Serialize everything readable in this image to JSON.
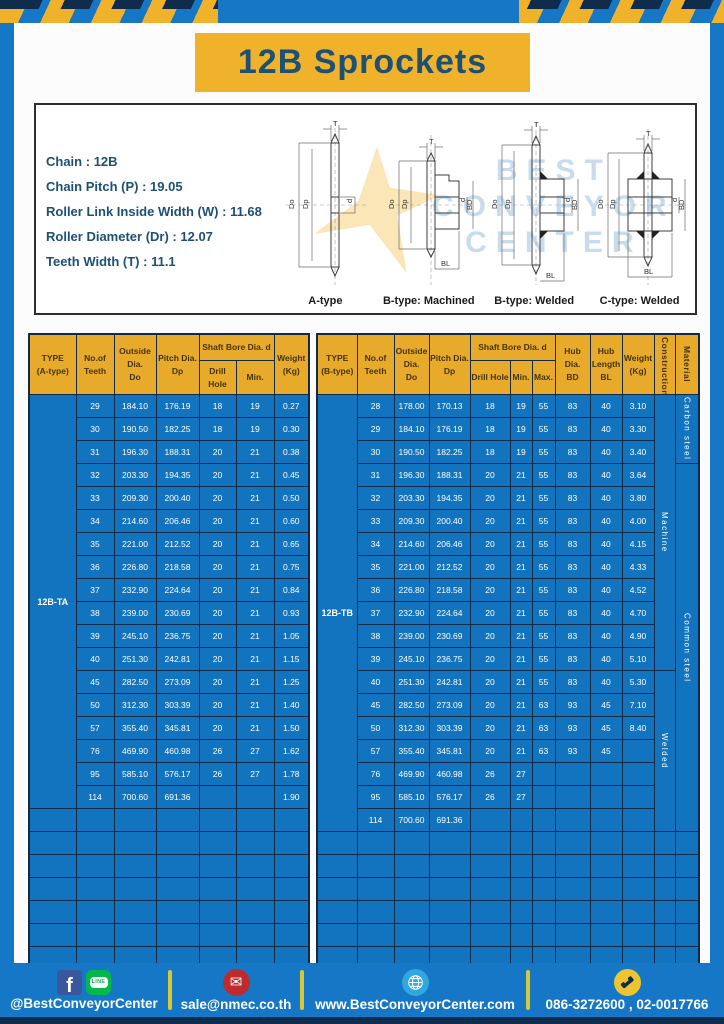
{
  "header": {
    "title": "12B Sprockets"
  },
  "specs": {
    "lines": [
      {
        "label": "Chain",
        "value": "12B"
      },
      {
        "label": "Chain Pitch (P)",
        "value": "19.05"
      },
      {
        "label": "Roller Link Inside Width (W)",
        "value": "11.68"
      },
      {
        "label": "Roller Diameter (Dr)",
        "value": "12.07"
      },
      {
        "label": "Teeth Width (T)",
        "value": "11.1"
      }
    ]
  },
  "diagrams": {
    "watermark_lines": [
      "BEST",
      "CONVEYOR",
      "CENTER"
    ],
    "items": [
      {
        "caption": "A-type",
        "labels": {
          "t": "T",
          "do": "Do",
          "dp": "Dp",
          "d": "d"
        }
      },
      {
        "caption": "B-type: Machined",
        "labels": {
          "t": "T",
          "do": "Do",
          "dp": "Dp",
          "d": "d",
          "bd": "BD",
          "bl": "BL"
        }
      },
      {
        "caption": "B-type: Welded",
        "labels": {
          "t": "T",
          "do": "Do",
          "dp": "Dp",
          "d": "d",
          "bd": "BD",
          "bl": "BL"
        }
      },
      {
        "caption": "C-type: Welded",
        "labels": {
          "t": "T",
          "do": "Do",
          "dp": "Dp",
          "d": "d",
          "bd": "BD",
          "bl": "BL"
        }
      }
    ]
  },
  "tables": {
    "left": {
      "type_label": "12B-TA",
      "header": {
        "type": [
          "TYPE",
          "(A-type)"
        ],
        "teeth": [
          "No.of",
          "Teeth"
        ],
        "outside": [
          "Outside",
          "Dia.",
          "Do"
        ],
        "pitch": [
          "Pitch Dia.",
          "Dp"
        ],
        "shaft_group": "Shaft Bore Dia. d",
        "shaft_cols": [
          "Drill Hole",
          "Min."
        ],
        "weight": [
          "Weight",
          "(Kg)"
        ]
      },
      "rows": [
        [
          "29",
          "184.10",
          "176.19",
          "18",
          "19",
          "0.27"
        ],
        [
          "30",
          "190.50",
          "182.25",
          "18",
          "19",
          "0.30"
        ],
        [
          "31",
          "196.30",
          "188.31",
          "20",
          "21",
          "0.38"
        ],
        [
          "32",
          "203.30",
          "194.35",
          "20",
          "21",
          "0.45"
        ],
        [
          "33",
          "209.30",
          "200.40",
          "20",
          "21",
          "0.50"
        ],
        [
          "34",
          "214.60",
          "206.46",
          "20",
          "21",
          "0.60"
        ],
        [
          "35",
          "221.00",
          "212.52",
          "20",
          "21",
          "0.65"
        ],
        [
          "36",
          "226.80",
          "218.58",
          "20",
          "21",
          "0.75"
        ],
        [
          "37",
          "232.90",
          "224.64",
          "20",
          "21",
          "0.84"
        ],
        [
          "38",
          "239.00",
          "230.69",
          "20",
          "21",
          "0.93"
        ],
        [
          "39",
          "245.10",
          "236.75",
          "20",
          "21",
          "1.05"
        ],
        [
          "40",
          "251.30",
          "242.81",
          "20",
          "21",
          "1.15"
        ],
        [
          "45",
          "282.50",
          "273.09",
          "20",
          "21",
          "1.25"
        ],
        [
          "50",
          "312.30",
          "303.39",
          "20",
          "21",
          "1.40"
        ],
        [
          "57",
          "355.40",
          "345.81",
          "20",
          "21",
          "1.50"
        ],
        [
          "76",
          "469.90",
          "460.98",
          "26",
          "27",
          "1.62"
        ],
        [
          "95",
          "585.10",
          "576.17",
          "26",
          "27",
          "1.78"
        ],
        [
          "114",
          "700.60",
          "691.36",
          "",
          "",
          "1.90"
        ]
      ],
      "empty_rows": 7
    },
    "right": {
      "type_label": "12B-TB",
      "header": {
        "type": [
          "TYPE",
          "(B-type)"
        ],
        "teeth": [
          "No.of",
          "Teeth"
        ],
        "outside": [
          "Outside",
          "Dia.",
          "Do"
        ],
        "pitch": [
          "Pitch Dia.",
          "Dp"
        ],
        "shaft_group": "Shaft Bore Dia. d",
        "shaft_cols": [
          "Drill Hole",
          "Min.",
          "Max."
        ],
        "hub_dia": [
          "Hub Dia.",
          "BD"
        ],
        "hub_len": [
          "Hub",
          "Length",
          "BL"
        ],
        "weight": [
          "Weight",
          "(Kg)"
        ],
        "construction": "Construction",
        "material": "Material"
      },
      "rows": [
        [
          "28",
          "178.00",
          "170.13",
          "18",
          "19",
          "55",
          "83",
          "40",
          "3.10"
        ],
        [
          "29",
          "184.10",
          "176.19",
          "18",
          "19",
          "55",
          "83",
          "40",
          "3.30"
        ],
        [
          "30",
          "190.50",
          "182.25",
          "18",
          "19",
          "55",
          "83",
          "40",
          "3.40"
        ],
        [
          "31",
          "196.30",
          "188.31",
          "20",
          "21",
          "55",
          "83",
          "40",
          "3.64"
        ],
        [
          "32",
          "203.30",
          "194.35",
          "20",
          "21",
          "55",
          "83",
          "40",
          "3.80"
        ],
        [
          "33",
          "209.30",
          "200.40",
          "20",
          "21",
          "55",
          "83",
          "40",
          "4.00"
        ],
        [
          "34",
          "214.60",
          "206.46",
          "20",
          "21",
          "55",
          "83",
          "40",
          "4.15"
        ],
        [
          "35",
          "221.00",
          "212.52",
          "20",
          "21",
          "55",
          "83",
          "40",
          "4.33"
        ],
        [
          "36",
          "226.80",
          "218.58",
          "20",
          "21",
          "55",
          "83",
          "40",
          "4.52"
        ],
        [
          "37",
          "232.90",
          "224.64",
          "20",
          "21",
          "55",
          "83",
          "40",
          "4.70"
        ],
        [
          "38",
          "239.00",
          "230.69",
          "20",
          "21",
          "55",
          "83",
          "40",
          "4.90"
        ],
        [
          "39",
          "245.10",
          "236.75",
          "20",
          "21",
          "55",
          "83",
          "40",
          "5.10"
        ],
        [
          "40",
          "251.30",
          "242.81",
          "20",
          "21",
          "55",
          "83",
          "40",
          "5.30"
        ],
        [
          "45",
          "282.50",
          "273.09",
          "20",
          "21",
          "63",
          "93",
          "45",
          "7.10"
        ],
        [
          "50",
          "312.30",
          "303.39",
          "20",
          "21",
          "63",
          "93",
          "45",
          "8.40"
        ],
        [
          "57",
          "355.40",
          "345.81",
          "20",
          "21",
          "63",
          "93",
          "45",
          ""
        ],
        [
          "76",
          "469.90",
          "460.98",
          "26",
          "27",
          "",
          "",
          "",
          ""
        ],
        [
          "95",
          "585.10",
          "576.17",
          "26",
          "27",
          "",
          "",
          "",
          ""
        ],
        [
          "114",
          "700.60",
          "691.36",
          "",
          "",
          "",
          "",
          "",
          ""
        ]
      ],
      "construction_spans": [
        {
          "label": "Machine",
          "rows": 12
        },
        {
          "label": "Welded",
          "rows": 7
        }
      ],
      "material_spans": [
        {
          "label": "Carbon steel",
          "rows": 3
        },
        {
          "label": "Common steel",
          "rows": 16
        }
      ],
      "empty_rows": 6
    }
  },
  "footer": {
    "sections": [
      {
        "text": "@BestConveyorCenter"
      },
      {
        "text": "sale@nmec.co.th"
      },
      {
        "text": "www.BestConveyorCenter.com"
      },
      {
        "text": "086-3272600 , 02-0017766"
      }
    ],
    "line_icon_text": "LINE",
    "facebook_letter": "f",
    "email_glyph": "✉"
  },
  "colors": {
    "canvas_blue": "#1577C5",
    "navy": "#0F2C4D",
    "stripe_yellow": "#EFB22A",
    "header_yellow": "#E8AA2B",
    "cell_blue": "#1273BF",
    "title_text": "#1D5075"
  }
}
